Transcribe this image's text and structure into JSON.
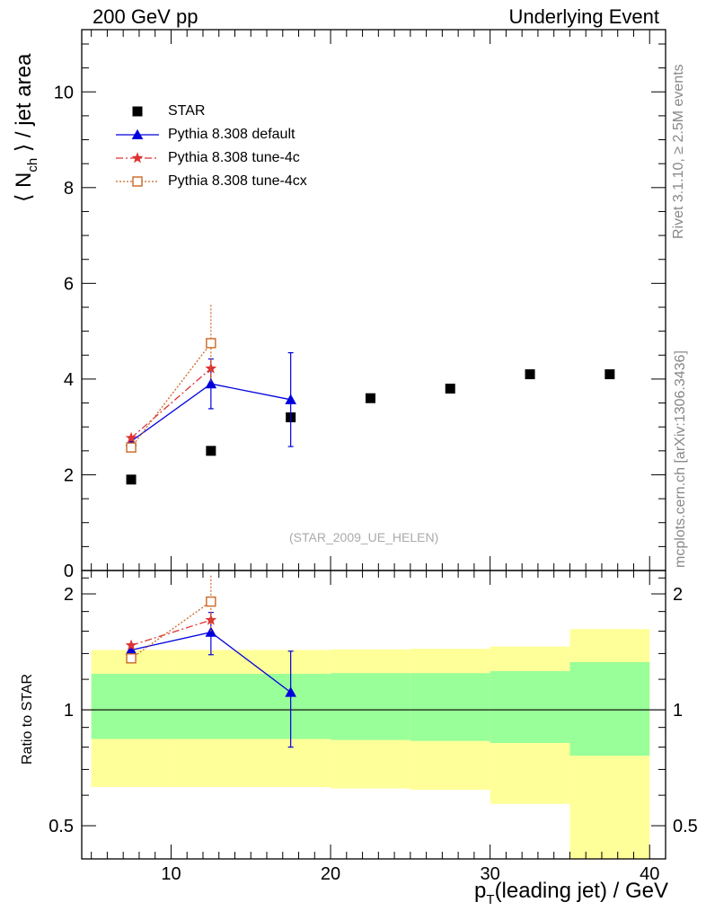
{
  "header": {
    "collision": "200 GeV pp",
    "observable": "Underlying Event"
  },
  "side_notes": {
    "rivet": "Rivet 3.1.10, ≥ 2.5M events",
    "source": "mcplots.cern.ch [arXiv:1306.3436]"
  },
  "analysis_label": "(STAR_2009_UE_HELEN)",
  "axes": {
    "x_label_main": "p",
    "x_label_sub": "T",
    "x_label_rest": "(leading jet) / GeV",
    "y_label_pre": "⟨ N",
    "y_label_sub": "ch",
    "y_label_post": " ⟩ / jet area",
    "ratio_label": "Ratio to STAR"
  },
  "colors": {
    "star": "#000000",
    "default": "#0000dd",
    "tune4c": "#dd3333",
    "tune4cx": "#cc6622",
    "band_inner": "#99ff99",
    "band_outer": "#ffff99"
  },
  "chart_data": [
    {
      "type": "scatter",
      "panel": "main",
      "xlim": [
        4.4,
        41
      ],
      "ylim": [
        0,
        11.3
      ],
      "x_ticks": [
        10,
        20,
        30,
        40
      ],
      "y_ticks": [
        0,
        2,
        4,
        6,
        8,
        10
      ],
      "legend_position": "top-left",
      "series": [
        {
          "name": "STAR",
          "marker": "square",
          "x": [
            7.5,
            12.5,
            17.5,
            22.5,
            27.5,
            32.5,
            37.5
          ],
          "y": [
            1.9,
            2.5,
            3.2,
            3.6,
            3.8,
            4.1,
            4.1
          ],
          "yerr": [
            0,
            0,
            0,
            0,
            0,
            0,
            0
          ]
        },
        {
          "name": "Pythia 8.308 default",
          "marker": "triangle",
          "line": "solid",
          "x": [
            7.5,
            12.5,
            17.5
          ],
          "y": [
            2.7,
            3.9,
            3.57
          ],
          "yerr": [
            0.07,
            0.52,
            0.98
          ]
        },
        {
          "name": "Pythia 8.308 tune-4c",
          "marker": "star",
          "line": "dashdot",
          "x": [
            7.5,
            12.5
          ],
          "y": [
            2.77,
            4.22
          ],
          "yerr": [
            0.07,
            0.2
          ]
        },
        {
          "name": "Pythia 8.308 tune-4cx",
          "marker": "open-square",
          "line": "dotted",
          "x": [
            7.5,
            12.5
          ],
          "y": [
            2.57,
            4.75
          ],
          "yerr": [
            0.08,
            0.8
          ]
        }
      ]
    },
    {
      "type": "scatter",
      "panel": "ratio",
      "ylim": [
        0.41,
        2.3
      ],
      "y_scale": "log",
      "y_ticks": [
        0.5,
        1,
        2
      ],
      "reference_line": 1,
      "bands": [
        {
          "x": [
            5,
            10
          ],
          "inner": [
            0.84,
            1.24
          ],
          "outer": [
            0.63,
            1.43
          ]
        },
        {
          "x": [
            10,
            20
          ],
          "inner": [
            0.84,
            1.24
          ],
          "outer": [
            0.63,
            1.43
          ]
        },
        {
          "x": [
            20,
            25
          ],
          "inner": [
            0.835,
            1.245
          ],
          "outer": [
            0.625,
            1.435
          ]
        },
        {
          "x": [
            25,
            30
          ],
          "inner": [
            0.83,
            1.245
          ],
          "outer": [
            0.62,
            1.44
          ]
        },
        {
          "x": [
            30,
            35
          ],
          "inner": [
            0.82,
            1.26
          ],
          "outer": [
            0.57,
            1.46
          ]
        },
        {
          "x": [
            35,
            40
          ],
          "inner": [
            0.76,
            1.33
          ],
          "outer": [
            0.41,
            1.62
          ]
        }
      ],
      "series": [
        {
          "name": "Pythia 8.308 default",
          "marker": "triangle",
          "line": "solid",
          "x": [
            7.5,
            12.5,
            17.5
          ],
          "y": [
            1.43,
            1.59,
            1.11
          ],
          "yerr": [
            0.04,
            0.2,
            0.31
          ]
        },
        {
          "name": "Pythia 8.308 tune-4c",
          "marker": "star",
          "line": "dashdot",
          "x": [
            7.5,
            12.5
          ],
          "y": [
            1.47,
            1.71
          ],
          "yerr": [
            0.04,
            0.08
          ]
        },
        {
          "name": "Pythia 8.308 tune-4cx",
          "marker": "open-square",
          "line": "dotted",
          "x": [
            7.5,
            12.5
          ],
          "y": [
            1.36,
            1.91
          ],
          "yerr": [
            0.04,
            0.32
          ]
        }
      ]
    }
  ]
}
